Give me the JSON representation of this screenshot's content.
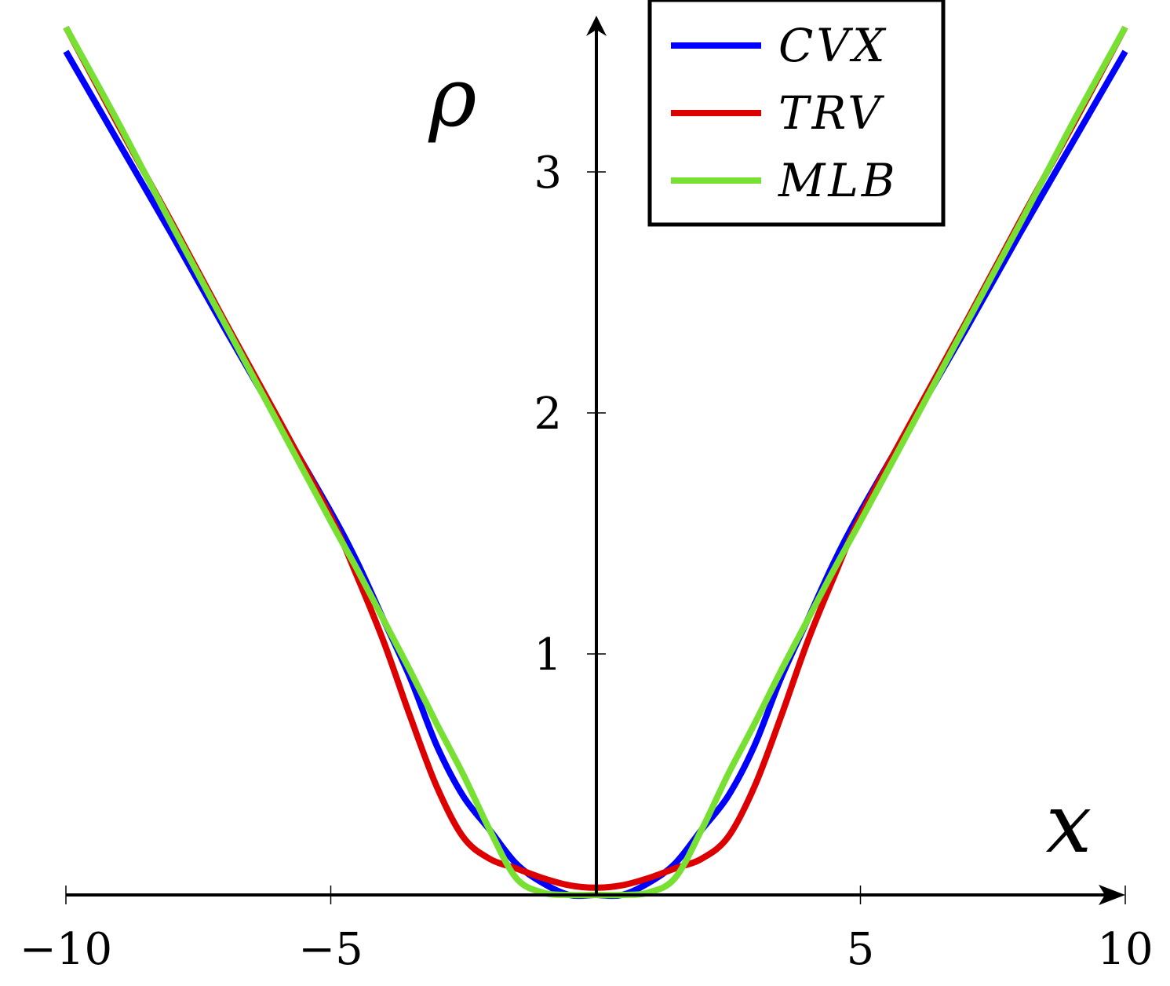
{
  "chart_data": {
    "type": "line",
    "title": "",
    "xlabel": "x",
    "ylabel": "ρ",
    "xlim": [
      -10,
      10
    ],
    "ylim": [
      0,
      3.6
    ],
    "x_ticks": [
      -10,
      -5,
      5,
      10
    ],
    "x_tick_labels": [
      "−10",
      "−5",
      "5",
      "10"
    ],
    "y_ticks": [
      1,
      2,
      3
    ],
    "y_tick_labels": [
      "1",
      "2",
      "3"
    ],
    "grid": false,
    "legend_position": "top-right",
    "x": [
      -10,
      -9,
      -8,
      -7,
      -6,
      -5,
      -4.5,
      -4,
      -3.5,
      -3,
      -2.5,
      -2,
      -1.5,
      -1,
      -0.5,
      0,
      0.5,
      1,
      1.5,
      2,
      2.5,
      3,
      3.5,
      4,
      4.5,
      5,
      6,
      7,
      8,
      9,
      10
    ],
    "series": [
      {
        "name": "CVX",
        "color": "#0000ff",
        "values": [
          3.5,
          3.12,
          2.74,
          2.35,
          1.97,
          1.59,
          1.38,
          1.14,
          0.9,
          0.62,
          0.41,
          0.27,
          0.13,
          0.05,
          0.0,
          0.0,
          0.0,
          0.05,
          0.13,
          0.27,
          0.41,
          0.62,
          0.9,
          1.14,
          1.38,
          1.59,
          1.97,
          2.35,
          2.74,
          3.12,
          3.5
        ]
      },
      {
        "name": "TRV",
        "color": "#dd0000",
        "values": [
          3.6,
          3.19,
          2.79,
          2.38,
          1.98,
          1.57,
          1.32,
          1.05,
          0.74,
          0.45,
          0.24,
          0.15,
          0.11,
          0.07,
          0.04,
          0.03,
          0.04,
          0.07,
          0.11,
          0.15,
          0.24,
          0.45,
          0.74,
          1.05,
          1.32,
          1.57,
          1.98,
          2.38,
          2.79,
          3.19,
          3.6
        ]
      },
      {
        "name": "MLB",
        "color": "#77e033",
        "values": [
          3.6,
          3.2,
          2.78,
          2.37,
          1.96,
          1.55,
          1.35,
          1.14,
          0.93,
          0.71,
          0.5,
          0.27,
          0.07,
          0.01,
          0.0,
          0.0,
          0.0,
          0.01,
          0.07,
          0.27,
          0.5,
          0.71,
          0.93,
          1.14,
          1.35,
          1.55,
          1.96,
          2.37,
          2.78,
          3.2,
          3.6
        ]
      }
    ]
  }
}
